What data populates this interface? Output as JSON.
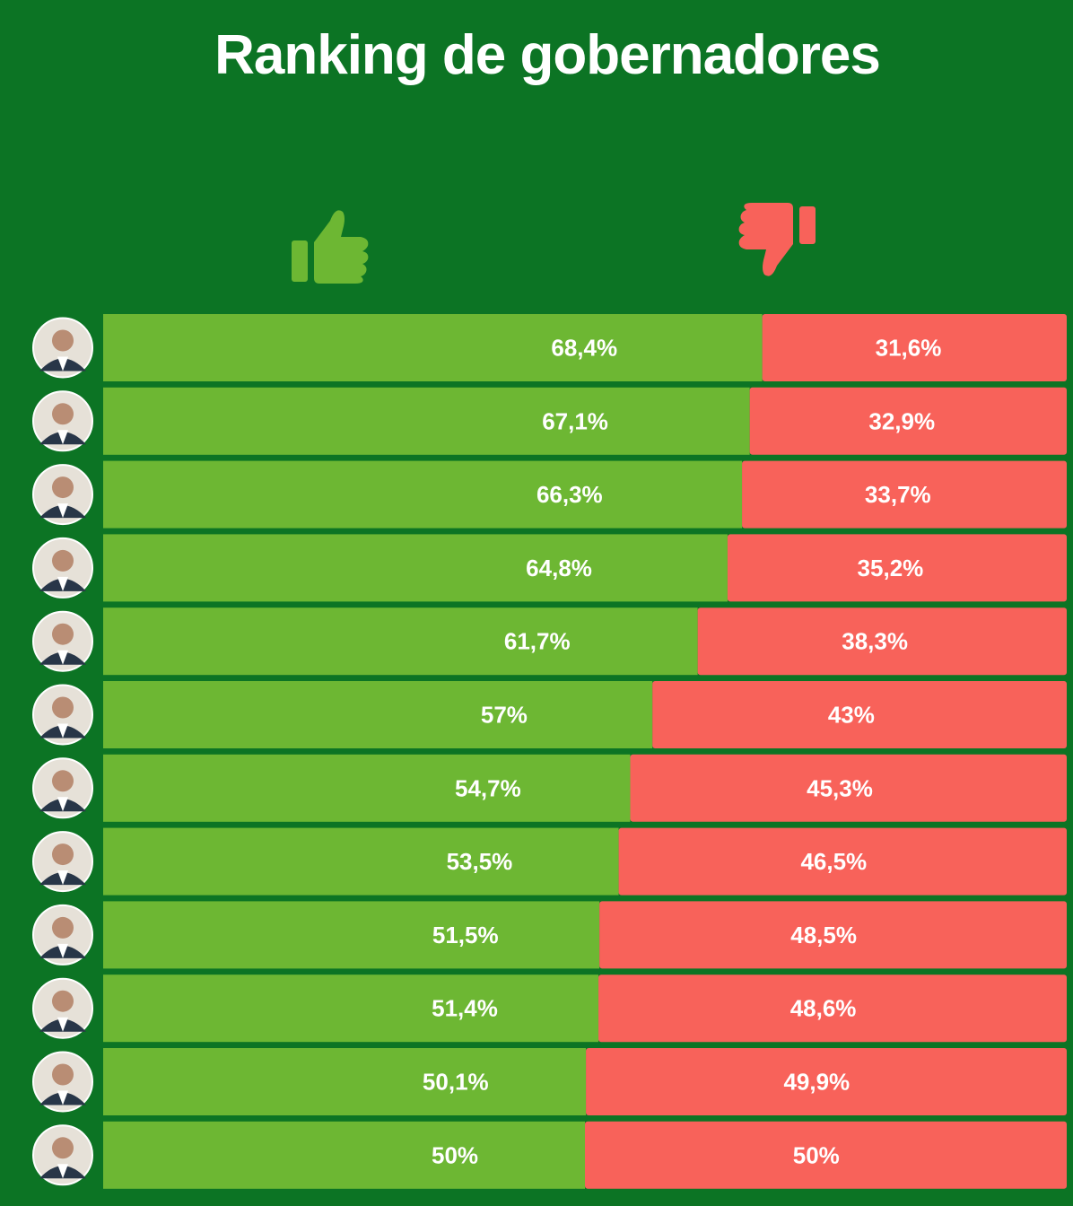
{
  "title": "Ranking de gobernadores",
  "icons": {
    "approve": "thumbs-up-icon",
    "disapprove": "thumbs-down-icon"
  },
  "colors": {
    "background": "#0c7424",
    "approve": "#6db733",
    "disapprove": "#f8625a",
    "label": "#ffffff"
  },
  "chart_data": {
    "type": "bar",
    "stacked": true,
    "orientation": "horizontal",
    "xlim": [
      0,
      100
    ],
    "series": [
      {
        "values": [
          68.4,
          67.1,
          66.3,
          64.8,
          61.7,
          57,
          54.7,
          53.5,
          51.5,
          51.4,
          50.1,
          50
        ],
        "labels": [
          "68,4%",
          "67,1%",
          "66,3%",
          "64,8%",
          "61,7%",
          "57%",
          "54,7%",
          "53,5%",
          "51,5%",
          "51,4%",
          "50,1%",
          "50%"
        ]
      },
      {
        "values": [
          31.6,
          32.9,
          33.7,
          35.2,
          38.3,
          43,
          45.3,
          46.5,
          48.5,
          48.6,
          49.9,
          50
        ],
        "labels": [
          "31,6%",
          "32,9%",
          "33,7%",
          "35,2%",
          "38,3%",
          "43%",
          "45,3%",
          "46,5%",
          "48,5%",
          "48,6%",
          "49,9%",
          "50%"
        ]
      }
    ]
  }
}
